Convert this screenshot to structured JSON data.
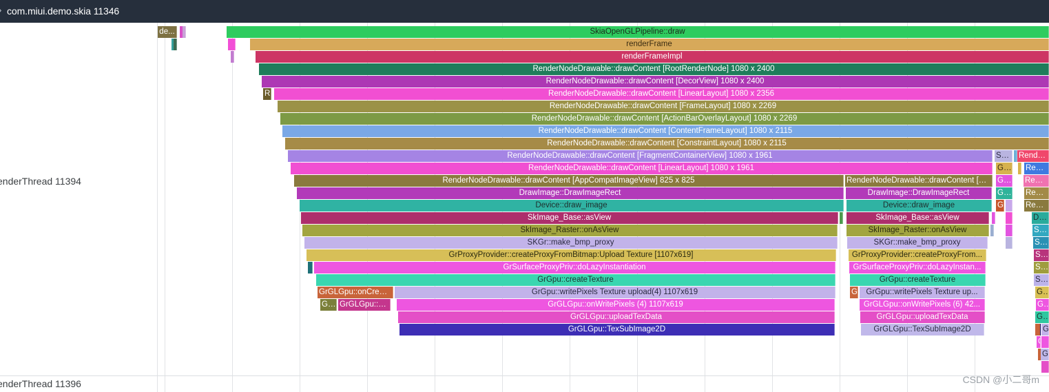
{
  "header": {
    "title": "com.miui.demo.skia 11346"
  },
  "threads": [
    {
      "label": "enderThread 11394"
    },
    {
      "label": "enderThread 11396"
    }
  ],
  "watermark": "CSDN @小二哥m",
  "colors": {
    "header_bg": "#262f3c",
    "selection_border": "#10106a"
  },
  "slices": [
    {
      "label": "de...",
      "color": "#7d7142",
      "text": "#ffffff"
    },
    {
      "label": "",
      "color": "#d94fc7",
      "text": "#ffffff"
    },
    {
      "label": "",
      "color": "#c8a2d7",
      "text": "#ffffff"
    },
    {
      "label": "SkiaOpenGLPipeline::draw",
      "color": "#2ecc5f",
      "text": "#1b2a1b"
    },
    {
      "label": "",
      "color": "#35a09c",
      "text": "#ffffff"
    },
    {
      "label": "",
      "color": "#3b6b52",
      "text": "#ffffff"
    },
    {
      "label": "",
      "color": "#f24fd6",
      "text": "#ffffff"
    },
    {
      "label": "renderFrame",
      "color": "#d7a95a",
      "text": "#3a2c12"
    },
    {
      "label": "",
      "color": "#c27bd0",
      "text": "#ffffff"
    },
    {
      "label": "renderFrameImpl",
      "color": "#cd3564",
      "text": "#ffffff"
    },
    {
      "label": "RenderNodeDrawable::drawContent [RootRenderNode] 1080 x 2400",
      "color": "#1f7d5b",
      "text": "#ffffff"
    },
    {
      "label": "RenderNodeDrawable::drawContent [DecorView] 1080 x 2400",
      "color": "#ad38b4",
      "text": "#ffffff"
    },
    {
      "label": "R",
      "color": "#6b5d2c",
      "text": "#ffffff"
    },
    {
      "label": "RenderNodeDrawable::drawContent [LinearLayout] 1080 x 2356",
      "color": "#f14fd2",
      "text": "#ffffff"
    },
    {
      "label": "RenderNodeDrawable::drawContent [FrameLayout] 1080 x 2269",
      "color": "#9b9247",
      "text": "#ffffff"
    },
    {
      "label": "RenderNodeDrawable::drawContent [ActionBarOverlayLayout] 1080 x 2269",
      "color": "#7d9a45",
      "text": "#ffffff"
    },
    {
      "label": "RenderNodeDrawable::drawContent [ContentFrameLayout] 1080 x 2115",
      "color": "#7aa8e6",
      "text": "#ffffff"
    },
    {
      "label": "RenderNodeDrawable::drawContent [ConstraintLayout] 1080 x 2115",
      "color": "#a68b47",
      "text": "#ffffff"
    },
    {
      "label": "RenderNodeDrawable::drawContent [FragmentContainerView] 1080 x 1961",
      "color": "#a584e4",
      "text": "#ffffff"
    },
    {
      "label": "SK...",
      "color": "#b9b4e0",
      "text": "#2a2a40"
    },
    {
      "label": "",
      "color": "#6fb1d8",
      "text": "#ffffff"
    },
    {
      "label": "RenderNo...",
      "color": "#f0476b",
      "text": "#ffffff"
    },
    {
      "label": "RenderNodeDrawable::drawContent [LinearLayout] 1080 x 1961",
      "color": "#f14fd2",
      "text": "#ffffff"
    },
    {
      "label": "Gr...",
      "color": "#d6b24f",
      "text": "#3a2c12"
    },
    {
      "label": "",
      "color": "#d8b54c",
      "text": "#ffffff"
    },
    {
      "label": "Render...",
      "color": "#3f7ae0",
      "text": "#ffffff"
    },
    {
      "label": "RenderNodeDrawable::drawContent [AppCompatImageView] 825 x 825",
      "color": "#8a7a3e",
      "text": "#ffffff"
    },
    {
      "label": "RenderNodeDrawable::drawContent [A...",
      "color": "#8a7a3e",
      "text": "#ffffff"
    },
    {
      "label": "Gr...",
      "color": "#e254e0",
      "text": "#ffffff"
    },
    {
      "label": "Render...",
      "color": "#f072b0",
      "text": "#ffffff"
    },
    {
      "label": "DrawImage::DrawImageRect",
      "color": "#b23ab9",
      "text": "#ffffff"
    },
    {
      "label": "DrawImage::DrawImageRect",
      "color": "#b23ab9",
      "text": "#ffffff"
    },
    {
      "label": "Gr...",
      "color": "#2fb39a",
      "text": "#ffffff"
    },
    {
      "label": "Render...",
      "color": "#a28a47",
      "text": "#ffffff"
    },
    {
      "label": "Device::draw_image",
      "color": "#30b3a3",
      "text": "#1e2f2d"
    },
    {
      "label": "Device::draw_image",
      "color": "#30b3a3",
      "text": "#1e2f2d"
    },
    {
      "label": "G",
      "color": "#c7562c",
      "text": "#ffffff"
    },
    {
      "label": "",
      "color": "#c8a8ea",
      "text": "#ffffff"
    },
    {
      "label": "Render...",
      "color": "#8a7a3e",
      "text": "#ffffff"
    },
    {
      "label": "SkImage_Base::asView",
      "color": "#ad2e6c",
      "text": "#ffffff"
    },
    {
      "label": "",
      "color": "#4c9a4c",
      "text": "#ffffff"
    },
    {
      "label": "SkImage_Base::asView",
      "color": "#ad2e6c",
      "text": "#ffffff"
    },
    {
      "label": "",
      "color": "#e254e0",
      "text": "#ffffff"
    },
    {
      "label": "",
      "color": "#f14fd2",
      "text": "#ffffff"
    },
    {
      "label": "Dev...",
      "color": "#2aab9c",
      "text": "#1e2f2d"
    },
    {
      "label": "SkImage_Raster::onAsView",
      "color": "#a2a540",
      "text": "#2a2a10"
    },
    {
      "label": "SkImage_Raster::onAsView",
      "color": "#a2a540",
      "text": "#2a2a10"
    },
    {
      "label": "",
      "color": "#9aaed0",
      "text": "#ffffff"
    },
    {
      "label": "",
      "color": "#e254e0",
      "text": "#ffffff"
    },
    {
      "label": "SkIm...",
      "color": "#32a8c0",
      "text": "#ffffff"
    },
    {
      "label": "SKGr::make_bmp_proxy",
      "color": "#c2b3ea",
      "text": "#2a2a40"
    },
    {
      "label": "SKGr::make_bmp_proxy",
      "color": "#c2b3ea",
      "text": "#2a2a40"
    },
    {
      "label": "",
      "color": "#b9b4e0",
      "text": "#ffffff"
    },
    {
      "label": "SkIm...",
      "color": "#2a91b4",
      "text": "#ffffff"
    },
    {
      "label": "GrProxyProvider::createProxyFromBitmap:Upload Texture [1107x619]",
      "color": "#d7bf58",
      "text": "#2a2a10"
    },
    {
      "label": "GrProxyProvider::createProxyFrom...",
      "color": "#d7bf58",
      "text": "#2a2a10"
    },
    {
      "label": "SkI...",
      "color": "#b8347c",
      "text": "#ffffff"
    },
    {
      "label": "",
      "color": "#1e7078",
      "text": "#ffffff"
    },
    {
      "label": "GrSurfaceProxyPriv::doLazyInstantiation",
      "color": "#ee56e0",
      "text": "#ffffff"
    },
    {
      "label": "GrSurfaceProxyPriv::doLazyInstan...",
      "color": "#ee56e0",
      "text": "#ffffff"
    },
    {
      "label": "SkI...",
      "color": "#9f9d3e",
      "text": "#ffffff"
    },
    {
      "label": "GrGpu::createTexture",
      "color": "#3ad6b0",
      "text": "#1e2f2d"
    },
    {
      "label": "GrGpu::createTexture",
      "color": "#3ad6b0",
      "text": "#1e2f2d"
    },
    {
      "label": "SKG...",
      "color": "#bcb3ea",
      "text": "#2a2a40"
    },
    {
      "label": "GrGLGpu::onCreat...",
      "color": "#c8643a",
      "text": "#ffffff"
    },
    {
      "label": "GrGpu::writePixels Texture upload(4) 1107x619",
      "color": "#c2b3ea",
      "text": "#2a2a40"
    },
    {
      "label": "G",
      "color": "#c8643a",
      "text": "#ffffff"
    },
    {
      "label": "GrGpu::writePixels Texture up...",
      "color": "#c2b3ea",
      "text": "#2a2a40"
    },
    {
      "label": "GrP...",
      "color": "#d9c055",
      "text": "#2a2a10"
    },
    {
      "label": "Gr...",
      "color": "#7b7f3a",
      "text": "#ffffff"
    },
    {
      "label": "GrGLGpu::cr...",
      "color": "#c4368d",
      "text": "#ffffff"
    },
    {
      "label": "GrGLGpu::onWritePixels (4) 1107x619",
      "color": "#ee56e0",
      "text": "#ffffff"
    },
    {
      "label": "GrGLGpu::onWritePixels (6) 42...",
      "color": "#ee56e0",
      "text": "#ffffff"
    },
    {
      "label": "GrS...",
      "color": "#ee56e0",
      "text": "#ffffff"
    },
    {
      "label": "GrGLGpu::uploadTexData",
      "color": "#e44fc7",
      "text": "#ffffff"
    },
    {
      "label": "GrGLGpu::uploadTexData",
      "color": "#e44fc7",
      "text": "#ffffff"
    },
    {
      "label": "Gr...",
      "color": "#30c7a0",
      "text": "#1e2f2d"
    },
    {
      "label": "GrGLGpu::TexSubImage2D",
      "color": "#3d2eb5",
      "text": "#ffffff"
    },
    {
      "label": "GrGLGpu::TexSubImage2D",
      "color": "#c0b8ea",
      "text": "#2a2a40"
    },
    {
      "label": "",
      "color": "#c8643a",
      "text": "#ffffff"
    },
    {
      "label": "Gr...",
      "color": "#c2b3ea",
      "text": "#2a2a40"
    },
    {
      "label": "G",
      "color": "#ee56e0",
      "text": "#ffffff"
    },
    {
      "label": "",
      "color": "#ee56e0",
      "text": "#ffffff"
    },
    {
      "label": "",
      "color": "#c8643a",
      "text": "#ffffff"
    },
    {
      "label": "G",
      "color": "#c0b8ea",
      "text": "#2a2a40"
    },
    {
      "label": "",
      "color": "#e44fc7",
      "text": "#ffffff"
    },
    {
      "label": "G",
      "color": "#b9b4e0",
      "text": "#2a2a40"
    }
  ]
}
